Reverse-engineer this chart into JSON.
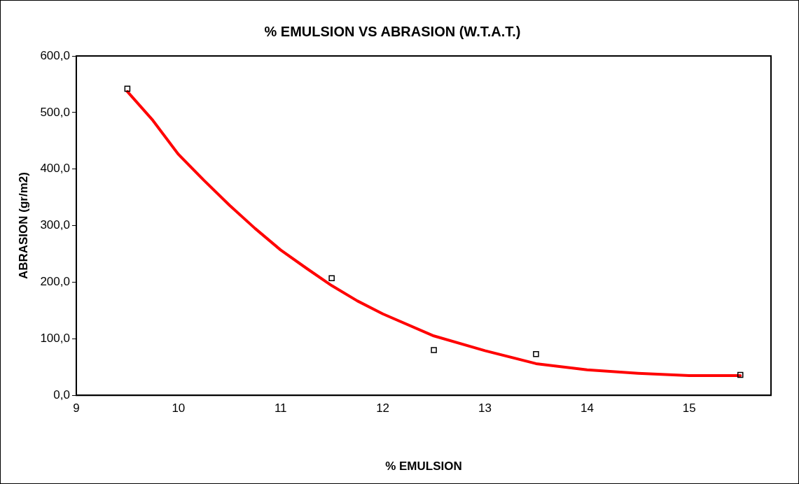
{
  "chart_data": {
    "type": "scatter",
    "title": "% EMULSION VS ABRASION (W.T.A.T.)",
    "xlabel": "% EMULSION",
    "ylabel": "ABRASION (gr/m2)",
    "xlim": [
      9,
      15.8
    ],
    "xticks": [
      9,
      10,
      11,
      12,
      13,
      14,
      15
    ],
    "ylim": [
      0,
      600
    ],
    "yticks": [
      {
        "value": 0,
        "label": "0,0"
      },
      {
        "value": 100,
        "label": "100,0"
      },
      {
        "value": 200,
        "label": "200,0"
      },
      {
        "value": 300,
        "label": "300,0"
      },
      {
        "value": 400,
        "label": "400,0"
      },
      {
        "value": 500,
        "label": "500,0"
      },
      {
        "value": 600,
        "label": "600,0"
      }
    ],
    "grid": false,
    "legend": false,
    "series": [
      {
        "type": "line",
        "color": "#ff0000",
        "marker": "none",
        "line_style": "solid",
        "x": [
          9.5,
          9.75,
          10,
          10.25,
          10.5,
          10.75,
          11,
          11.25,
          11.5,
          11.75,
          12,
          12.5,
          13,
          13.5,
          14,
          14.5,
          15,
          15.5
        ],
        "values": [
          537,
          486,
          426,
          380,
          336,
          295,
          257,
          225,
          194,
          167,
          144,
          105,
          79,
          56,
          45,
          39,
          35,
          35
        ]
      },
      {
        "color": "#000000",
        "marker": "square",
        "x": [
          9.5,
          11.5,
          12.5,
          13.5,
          15.5
        ],
        "values": [
          542,
          207,
          80,
          73,
          36
        ]
      }
    ]
  }
}
